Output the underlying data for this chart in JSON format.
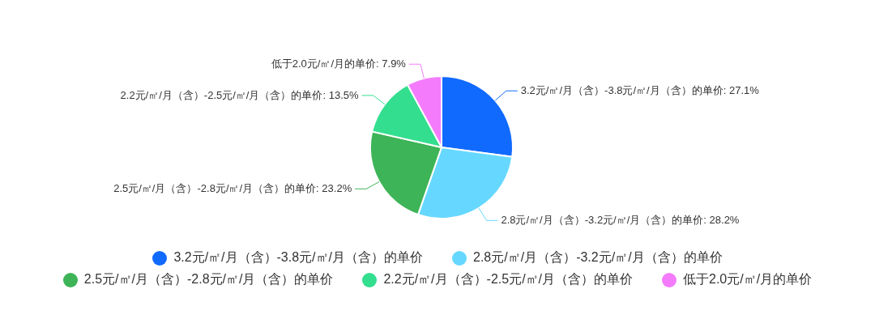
{
  "chart_data": {
    "type": "pie",
    "categories": [
      "3.2元/㎡/月（含）-3.8元/㎡/月（含）的单价",
      "2.8元/㎡/月（含）-3.2元/㎡/月（含）的单价",
      "2.5元/㎡/月（含）-2.8元/㎡/月（含）的单价",
      "2.2元/㎡/月（含）-2.5元/㎡/月（含）的单价",
      "低于2.0元/㎡/月的单价"
    ],
    "values": [
      27.1,
      28.2,
      23.2,
      13.5,
      7.9
    ],
    "value_labels": [
      "3.2元/㎡/月（含）-3.8元/㎡/月（含）的单价: 27.1%",
      "2.8元/㎡/月（含）-3.2元/㎡/月（含）的单价: 28.2%",
      "2.5元/㎡/月（含）-2.8元/㎡/月（含）的单价: 23.2%",
      "2.2元/㎡/月（含）-2.5元/㎡/月（含）的单价: 13.5%",
      "低于2.0元/㎡/月的单价: 7.9%"
    ],
    "colors": [
      "#116afe",
      "#66d8ff",
      "#3db457",
      "#33de8f",
      "#f47cfc"
    ],
    "legend": "bottom"
  }
}
